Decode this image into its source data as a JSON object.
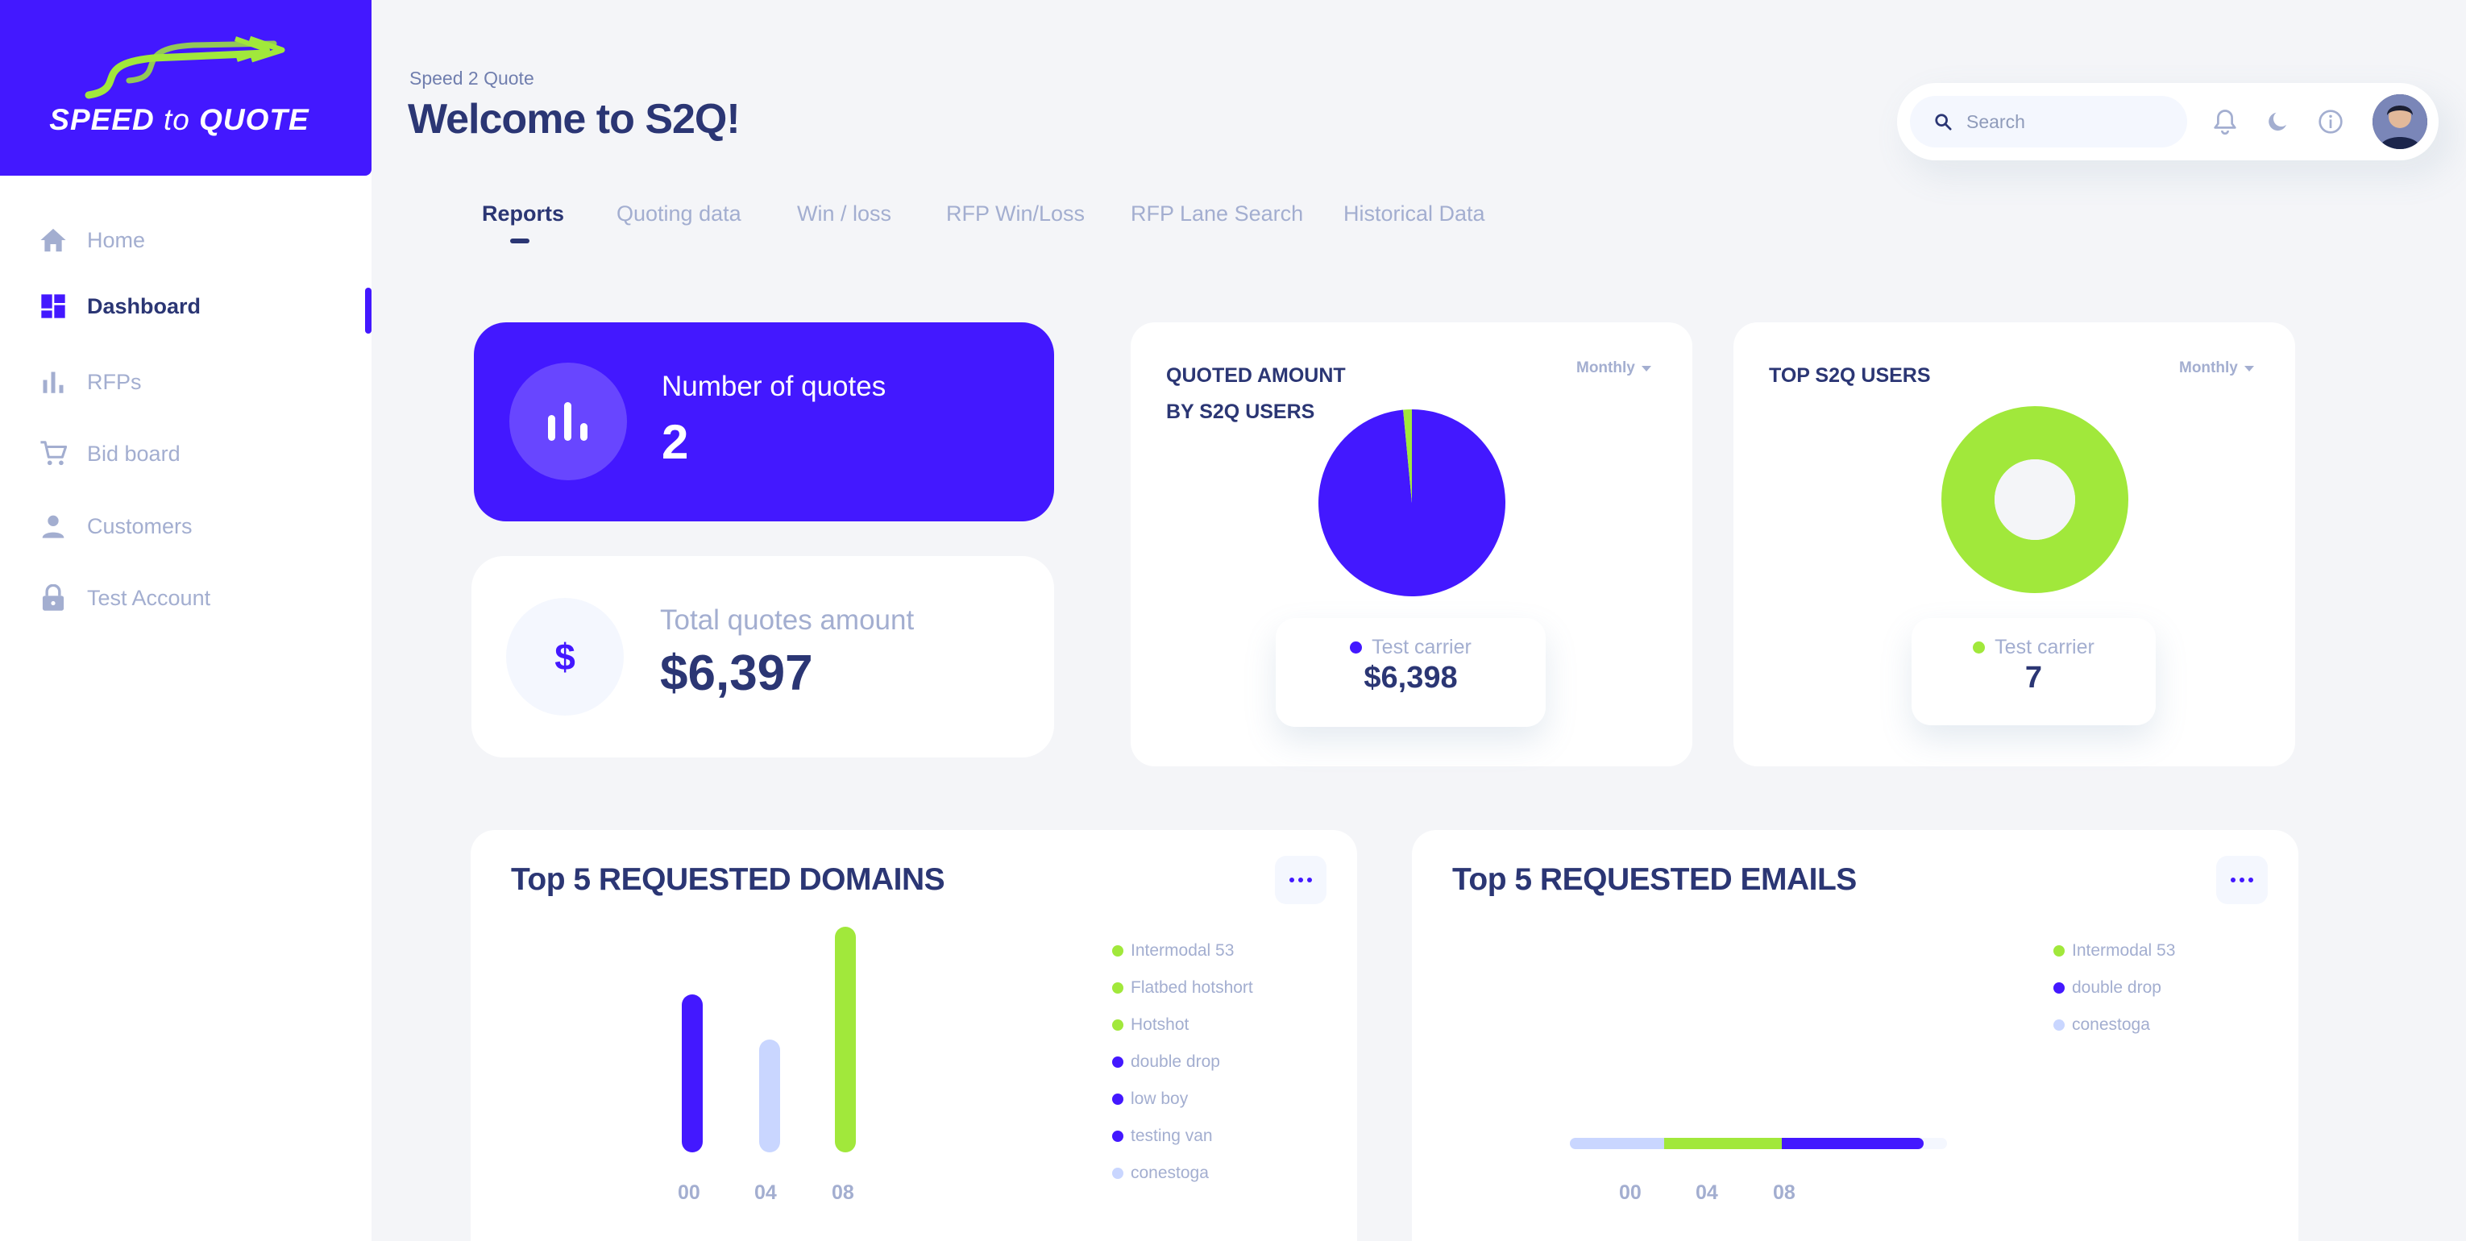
{
  "brand": {
    "logo_word1": "SPEED",
    "logo_word2": "to",
    "logo_word3": "QUOTE",
    "primary_color": "#4318FF",
    "accent_color": "#A1E83B",
    "light_color": "#C9D6FF"
  },
  "sidebar": {
    "items": [
      {
        "label": "Home",
        "icon": "home-icon",
        "active": false
      },
      {
        "label": "Dashboard",
        "icon": "dashboard-icon",
        "active": true
      },
      {
        "label": "RFPs",
        "icon": "bar-chart-icon",
        "active": false
      },
      {
        "label": "Bid board",
        "icon": "cart-icon",
        "active": false
      },
      {
        "label": "Customers",
        "icon": "person-icon",
        "active": false
      },
      {
        "label": "Test Account",
        "icon": "lock-icon",
        "active": false
      }
    ]
  },
  "header": {
    "breadcrumb": "Speed 2 Quote",
    "title": "Welcome to S2Q!",
    "search_placeholder": "Search"
  },
  "tabs": [
    {
      "label": "Reports",
      "active": true
    },
    {
      "label": "Quoting data",
      "active": false
    },
    {
      "label": "Win / loss",
      "active": false
    },
    {
      "label": "RFP Win/Loss",
      "active": false
    },
    {
      "label": "RFP Lane Search",
      "active": false
    },
    {
      "label": "Historical Data",
      "active": false
    }
  ],
  "stats": {
    "quotes": {
      "label": "Number of quotes",
      "value": "2",
      "icon": "bar-chart-icon"
    },
    "amount": {
      "label": "Total quotes amount",
      "value": "$6,397",
      "icon": "dollar-icon",
      "glyph": "$"
    }
  },
  "quoted_amount": {
    "title_line1": "QUOTED AMOUNT",
    "title_line2": "BY S2Q USERS",
    "period": "Monthly",
    "legend_label": "Test carrier",
    "legend_value": "$6,398"
  },
  "top_users": {
    "title": "TOP S2Q USERS",
    "period": "Monthly",
    "legend_label": "Test carrier",
    "legend_value": "7"
  },
  "domains": {
    "title": "Top 5 REQUESTED DOMAINS",
    "legend": [
      {
        "label": "Intermodal 53",
        "color": "#A1E83B"
      },
      {
        "label": "Flatbed hotshort",
        "color": "#A1E83B"
      },
      {
        "label": "Hotshot",
        "color": "#A1E83B"
      },
      {
        "label": "double drop",
        "color": "#4318FF"
      },
      {
        "label": "low boy",
        "color": "#4318FF"
      },
      {
        "label": "testing van",
        "color": "#4318FF"
      },
      {
        "label": "conestoga",
        "color": "#C9D6FF"
      }
    ],
    "ticks": [
      "00",
      "04",
      "08"
    ]
  },
  "emails": {
    "title": "Top 5 REQUESTED EMAILS",
    "legend": [
      {
        "label": "Intermodal 53",
        "color": "#A1E83B"
      },
      {
        "label": "double drop",
        "color": "#4318FF"
      },
      {
        "label": "conestoga",
        "color": "#C9D6FF"
      }
    ],
    "ticks": [
      "00",
      "04",
      "08"
    ]
  },
  "chart_data": [
    {
      "type": "pie",
      "title": "QUOTED AMOUNT BY S2Q USERS",
      "slices": [
        {
          "label": "Test carrier",
          "value": 98.5,
          "color": "#4318FF"
        },
        {
          "label": "",
          "value": 1.5,
          "color": "#A1E83B"
        }
      ]
    },
    {
      "type": "pie",
      "title": "TOP S2Q USERS",
      "donut": true,
      "slices": [
        {
          "label": "Test carrier",
          "value": 7,
          "color": "#A1E83B"
        }
      ]
    },
    {
      "type": "bar",
      "title": "Top 5 REQUESTED DOMAINS",
      "categories": [
        "00",
        "04",
        "08"
      ],
      "values": [
        7,
        5,
        10
      ],
      "colors": [
        "#4318FF",
        "#C9D6FF",
        "#A1E83B"
      ],
      "ylim": [
        0,
        10
      ]
    },
    {
      "type": "bar",
      "title": "Top 5 REQUESTED EMAILS",
      "orientation": "horizontal-stacked",
      "series": [
        {
          "name": "conestoga",
          "value": 2,
          "color": "#C9D6FF"
        },
        {
          "name": "Intermodal 53",
          "value": 2.5,
          "color": "#A1E83B"
        },
        {
          "name": "double drop",
          "value": 3,
          "color": "#4318FF"
        }
      ],
      "xlim": [
        0,
        8
      ]
    }
  ]
}
